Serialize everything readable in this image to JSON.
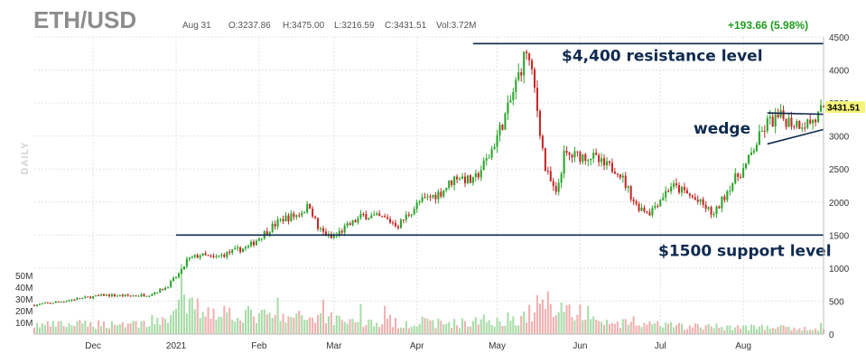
{
  "header": {
    "symbol": "ETH/USD",
    "date": "Aug 31",
    "open": "O:3237.86",
    "high": "H:3475.00",
    "low": "L:3216.59",
    "close": "C:3431.51",
    "volume": "Vol:3.72M",
    "change": "+193.66 (5.98%)"
  },
  "chart_data": {
    "type": "candlestick",
    "period_label": "DAILY",
    "x_range": [
      "2020-11-09",
      "2021-08-31"
    ],
    "price_axis": {
      "range": [
        0,
        4500
      ],
      "ticks": [
        "0",
        "500",
        "1000",
        "1500",
        "2000",
        "2500",
        "3000",
        "3500",
        "4000",
        "4500"
      ],
      "position": "right"
    },
    "volume_axis": {
      "ticks": [
        "10M",
        "20M",
        "30M",
        "40M",
        "50M"
      ],
      "position": "left"
    },
    "month_ticks": [
      {
        "date": "2020-12-01",
        "label": "Dec"
      },
      {
        "date": "2021-01-01",
        "label": "2021"
      },
      {
        "date": "2021-02-01",
        "label": "Feb"
      },
      {
        "date": "2021-03-01",
        "label": "Mar"
      },
      {
        "date": "2021-04-01",
        "label": "Apr"
      },
      {
        "date": "2021-05-01",
        "label": "May"
      },
      {
        "date": "2021-06-01",
        "label": "Jun"
      },
      {
        "date": "2021-07-01",
        "label": "Jul"
      },
      {
        "date": "2021-08-01",
        "label": "Aug"
      }
    ],
    "grid": true,
    "last_price": "3431.51",
    "price_path": [
      [
        "2020-11-09",
        440
      ],
      [
        "2020-11-20",
        500
      ],
      [
        "2020-11-26",
        540
      ],
      [
        "2020-12-05",
        590
      ],
      [
        "2020-12-15",
        580
      ],
      [
        "2020-12-22",
        600
      ],
      [
        "2020-12-28",
        700
      ],
      [
        "2021-01-03",
        950
      ],
      [
        "2021-01-05",
        1120
      ],
      [
        "2021-01-10",
        1200
      ],
      [
        "2021-01-15",
        1150
      ],
      [
        "2021-01-22",
        1250
      ],
      [
        "2021-01-28",
        1320
      ],
      [
        "2021-02-05",
        1600
      ],
      [
        "2021-02-10",
        1750
      ],
      [
        "2021-02-15",
        1800
      ],
      [
        "2021-02-20",
        1950
      ],
      [
        "2021-02-23",
        1600
      ],
      [
        "2021-02-28",
        1450
      ],
      [
        "2021-03-05",
        1600
      ],
      [
        "2021-03-12",
        1800
      ],
      [
        "2021-03-20",
        1750
      ],
      [
        "2021-03-25",
        1650
      ],
      [
        "2021-04-02",
        2000
      ],
      [
        "2021-04-10",
        2150
      ],
      [
        "2021-04-16",
        2400
      ],
      [
        "2021-04-22",
        2300
      ],
      [
        "2021-04-28",
        2700
      ],
      [
        "2021-05-05",
        3400
      ],
      [
        "2021-05-10",
        4050
      ],
      [
        "2021-05-12",
        4300
      ],
      [
        "2021-05-15",
        3700
      ],
      [
        "2021-05-19",
        2500
      ],
      [
        "2021-05-23",
        2100
      ],
      [
        "2021-05-26",
        2700
      ],
      [
        "2021-06-05",
        2700
      ],
      [
        "2021-06-10",
        2550
      ],
      [
        "2021-06-15",
        2500
      ],
      [
        "2021-06-22",
        1950
      ],
      [
        "2021-06-27",
        1850
      ],
      [
        "2021-07-05",
        2250
      ],
      [
        "2021-07-10",
        2150
      ],
      [
        "2021-07-17",
        1950
      ],
      [
        "2021-07-21",
        1800
      ],
      [
        "2021-07-27",
        2250
      ],
      [
        "2021-08-02",
        2550
      ],
      [
        "2021-08-06",
        2900
      ],
      [
        "2021-08-10",
        3200
      ],
      [
        "2021-08-15",
        3280
      ],
      [
        "2021-08-20",
        3200
      ],
      [
        "2021-08-25",
        3200
      ],
      [
        "2021-08-28",
        3250
      ],
      [
        "2021-08-31",
        3431.51
      ]
    ],
    "volume_path": [
      [
        "2020-11-09",
        8
      ],
      [
        "2020-12-25",
        10
      ],
      [
        "2021-01-04",
        26
      ],
      [
        "2021-01-11",
        22
      ],
      [
        "2021-02-10",
        14
      ],
      [
        "2021-02-25",
        16
      ],
      [
        "2021-03-15",
        10
      ],
      [
        "2021-04-20",
        10
      ],
      [
        "2021-05-11",
        15
      ],
      [
        "2021-05-19",
        30
      ],
      [
        "2021-06-10",
        10
      ],
      [
        "2021-07-10",
        7
      ],
      [
        "2021-08-10",
        6
      ],
      [
        "2021-08-31",
        4
      ]
    ],
    "annotations": [
      {
        "text": "$4,400 resistance level",
        "kind": "horizontal_line",
        "value": 4400,
        "from": "2021-04-22",
        "to": "2021-08-31"
      },
      {
        "text": "$1500 support level",
        "kind": "horizontal_line",
        "value": 1500,
        "from": "2021-01-01",
        "to": "2021-08-31"
      },
      {
        "text": "wedge",
        "kind": "wedge",
        "upper": [
          [
            "2021-08-10",
            3350
          ],
          [
            "2021-08-31",
            3330
          ]
        ],
        "lower": [
          [
            "2021-08-10",
            2880
          ],
          [
            "2021-08-31",
            3100
          ]
        ]
      }
    ],
    "colors": {
      "up": "#2aa52a",
      "down": "#c62828",
      "volume_up": "#a8dca8",
      "volume_down": "#f0b0b0",
      "annotation": "#0f2a4e",
      "last_price_bg": "#f5f57a"
    }
  }
}
